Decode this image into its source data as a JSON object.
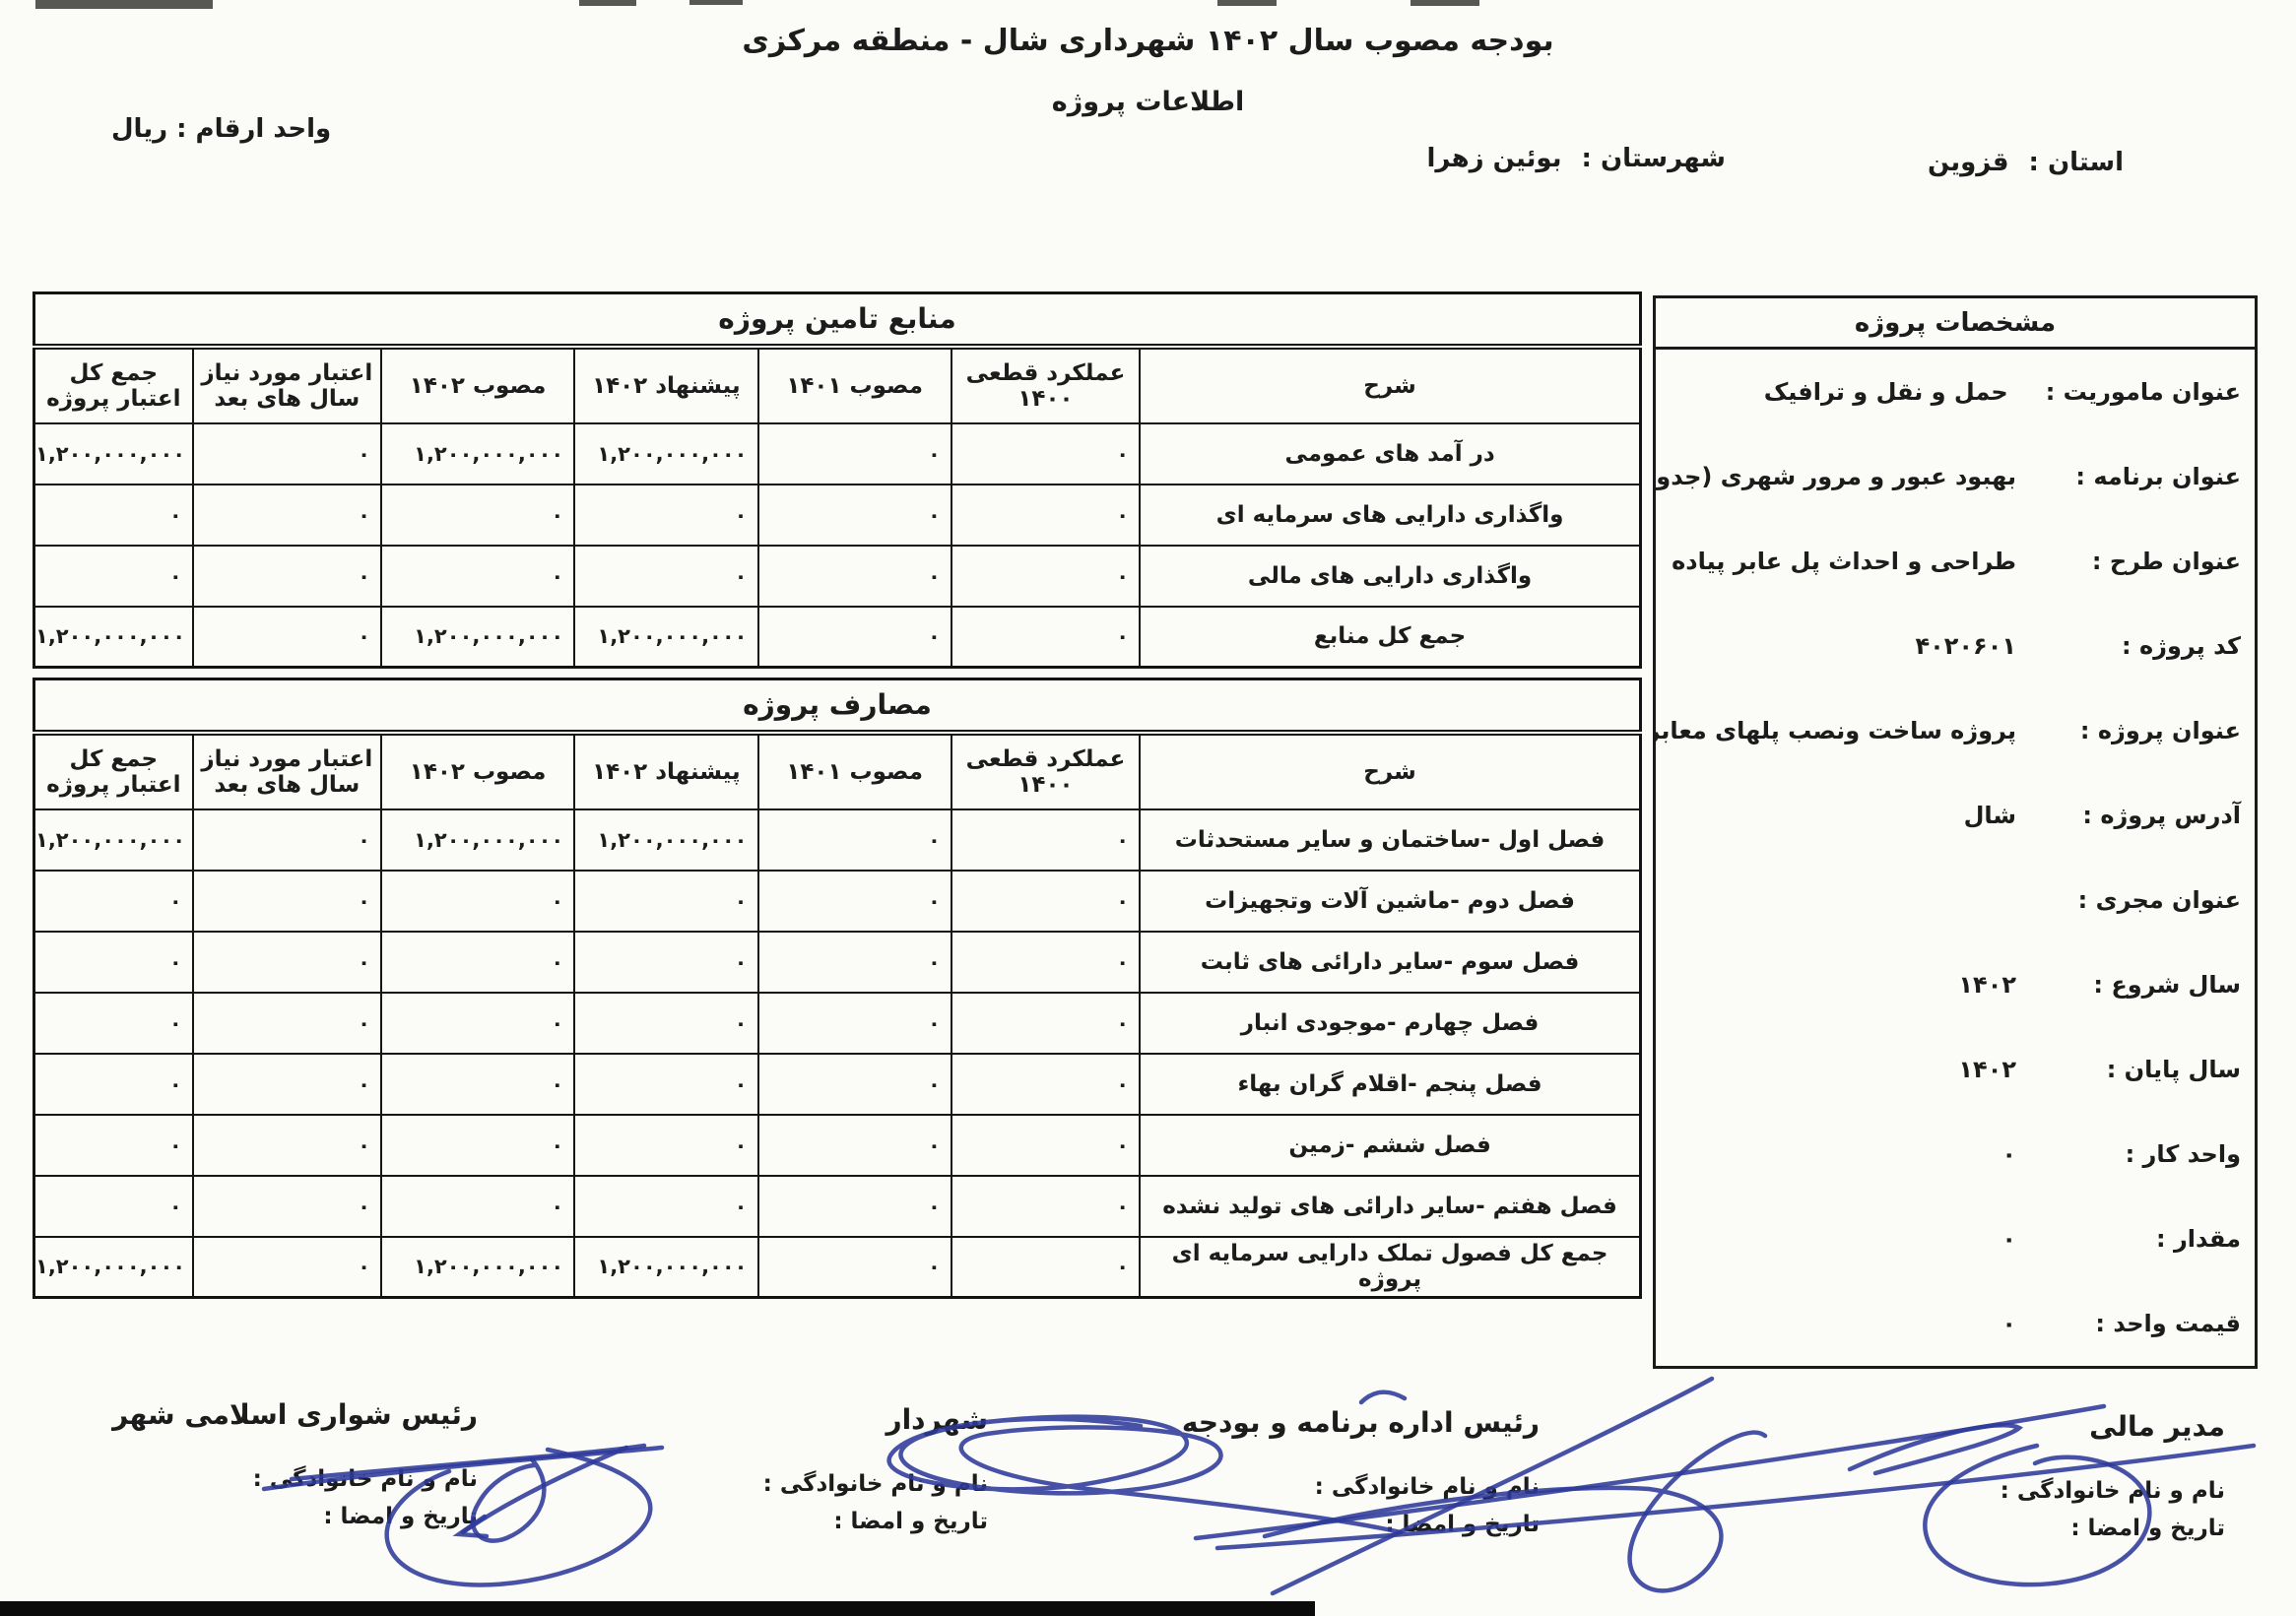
{
  "page": {
    "title": "بودجه مصوب سال ۱۴۰۲ شهرداری شال - منطقه مرکزی",
    "subtitle": "اطلاعات پروژه",
    "unit_label": "واحد ارقام : ریال",
    "province_label": "استان :",
    "province_value": "قزوین",
    "county_label": "شهرستان :",
    "county_value": "بوئین زهرا"
  },
  "project_specs": {
    "title": "مشخصات پروژه",
    "fields": [
      {
        "label": "عنوان ماموریت :",
        "value": "حمل و نقل و ترافیک"
      },
      {
        "label": "عنوان برنامه :",
        "value": "بهبود عبور و مرور شهری (جدول گذاری،پیاده رو،معابر،خطکشی)"
      },
      {
        "label": "عنوان طرح :",
        "value": "طراحی و احداث پل عابر پیاده"
      },
      {
        "label": "کد پروژه :",
        "value": "۴۰۲۰۶۰۱"
      },
      {
        "label": "عنوان پروژه :",
        "value": "پروژه ساخت ونصب پلهای معابر اصلی وفرعی سطح شهر"
      },
      {
        "label": "آدرس پروژه :",
        "value": "شال"
      },
      {
        "label": "عنوان مجری :",
        "value": ""
      },
      {
        "label": "سال شروع :",
        "value": "۱۴۰۲"
      },
      {
        "label": "سال پایان :",
        "value": "۱۴۰۲"
      },
      {
        "label": "واحد کار :",
        "value": "۰"
      },
      {
        "label": "مقدار :",
        "value": "۰"
      },
      {
        "label": "قیمت واحد :",
        "value": "۰"
      }
    ]
  },
  "sources_table": {
    "title": "منابع تامین پروژه",
    "columns": [
      "شرح",
      "عملکرد قطعی ۱۴۰۰",
      "مصوب ۱۴۰۱",
      "پیشنهاد ۱۴۰۲",
      "مصوب ۱۴۰۲",
      "اعتبار مورد نیاز سال های بعد",
      "جمع کل اعتبار پروژه"
    ],
    "rows": [
      {
        "label": "در آمد های عمومی",
        "values": [
          "۰",
          "۰",
          "۱,۲۰۰,۰۰۰,۰۰۰",
          "۱,۲۰۰,۰۰۰,۰۰۰",
          "۰",
          "۱,۲۰۰,۰۰۰,۰۰۰"
        ]
      },
      {
        "label": "واگذاری دارایی های سرمایه ای",
        "values": [
          "۰",
          "۰",
          "۰",
          "۰",
          "۰",
          "۰"
        ]
      },
      {
        "label": "واگذاری دارایی های مالی",
        "values": [
          "۰",
          "۰",
          "۰",
          "۰",
          "۰",
          "۰"
        ]
      },
      {
        "label": "جمع کل منابع",
        "values": [
          "۰",
          "۰",
          "۱,۲۰۰,۰۰۰,۰۰۰",
          "۱,۲۰۰,۰۰۰,۰۰۰",
          "۰",
          "۱,۲۰۰,۰۰۰,۰۰۰"
        ]
      }
    ]
  },
  "expenses_table": {
    "title": "مصارف پروژه",
    "columns": [
      "شرح",
      "عملکرد قطعی ۱۴۰۰",
      "مصوب ۱۴۰۱",
      "پیشنهاد ۱۴۰۲",
      "مصوب ۱۴۰۲",
      "اعتبار مورد نیاز سال های بعد",
      "جمع کل اعتبار پروژه"
    ],
    "rows": [
      {
        "label": "فصل اول -ساختمان و سایر مستحدثات",
        "values": [
          "۰",
          "۰",
          "۱,۲۰۰,۰۰۰,۰۰۰",
          "۱,۲۰۰,۰۰۰,۰۰۰",
          "۰",
          "۱,۲۰۰,۰۰۰,۰۰۰"
        ]
      },
      {
        "label": "فصل دوم -ماشین آلات وتجهیزات",
        "values": [
          "۰",
          "۰",
          "۰",
          "۰",
          "۰",
          "۰"
        ]
      },
      {
        "label": "فصل سوم -سایر دارائی های ثابت",
        "values": [
          "۰",
          "۰",
          "۰",
          "۰",
          "۰",
          "۰"
        ]
      },
      {
        "label": "فصل چهارم -موجودی انبار",
        "values": [
          "۰",
          "۰",
          "۰",
          "۰",
          "۰",
          "۰"
        ]
      },
      {
        "label": "فصل پنجم -اقلام گران بهاء",
        "values": [
          "۰",
          "۰",
          "۰",
          "۰",
          "۰",
          "۰"
        ]
      },
      {
        "label": "فصل ششم -زمین",
        "values": [
          "۰",
          "۰",
          "۰",
          "۰",
          "۰",
          "۰"
        ]
      },
      {
        "label": "فصل هفتم -سایر دارائی های تولید نشده",
        "values": [
          "۰",
          "۰",
          "۰",
          "۰",
          "۰",
          "۰"
        ]
      },
      {
        "label": "جمع کل فصول تملک دارایی سرمایه ای پروژه",
        "values": [
          "۰",
          "۰",
          "۱,۲۰۰,۰۰۰,۰۰۰",
          "۱,۲۰۰,۰۰۰,۰۰۰",
          "۰",
          "۱,۲۰۰,۰۰۰,۰۰۰"
        ]
      }
    ]
  },
  "signatures": [
    {
      "key": "financial-manager",
      "title": "مدیر مالی",
      "name_label": "نام و نام خانوادگی :",
      "date_label": "تاریخ و امضا :"
    },
    {
      "key": "budget-office-head",
      "title": "رئیس اداره برنامه و بودجه",
      "name_label": "نام و نام خانوادگی :",
      "date_label": "تاریخ و امضا :"
    },
    {
      "key": "mayor",
      "title": "شهردار",
      "name_label": "نام و نام خانوادگی :",
      "date_label": "تاریخ و امضا :"
    },
    {
      "key": "city-council-head",
      "title": "رئیس شواری اسلامی شهر",
      "name_label": "نام و نام خانوادگی :",
      "date_label": "تاریخ و امضا :"
    }
  ],
  "colors": {
    "ink": "#1c1c1c",
    "signature_ink": "#2e3a9a",
    "paper": "#fbfbf8"
  }
}
